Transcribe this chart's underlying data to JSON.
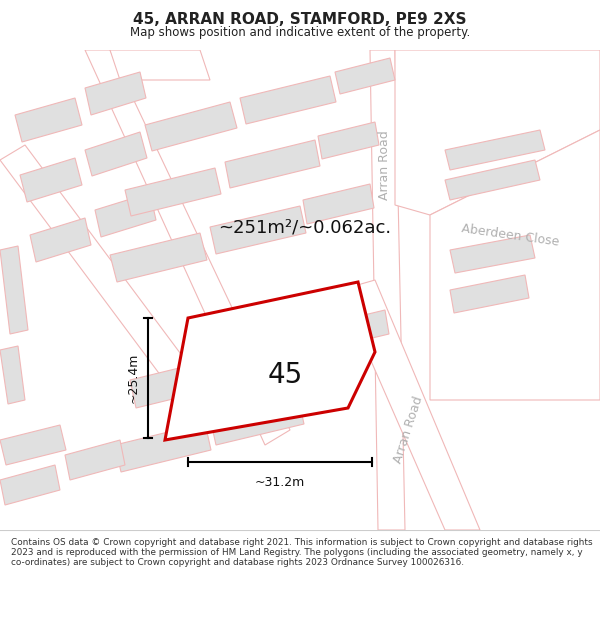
{
  "title": "45, ARRAN ROAD, STAMFORD, PE9 2XS",
  "subtitle": "Map shows position and indicative extent of the property.",
  "footer": "Contains OS data © Crown copyright and database right 2021. This information is subject to Crown copyright and database rights 2023 and is reproduced with the permission of HM Land Registry. The polygons (including the associated geometry, namely x, y co-ordinates) are subject to Crown copyright and database rights 2023 Ordnance Survey 100026316.",
  "bg_color": "#ffffff",
  "map_bg": "#f9f9f9",
  "plot_color": "#e0e0e0",
  "road_stroke": "#f0b8b8",
  "highlight_color": "#cc0000",
  "street_text_color": "#b0b0b0",
  "dim_text_color": "#111111",
  "area_text": "~251m²/~0.062ac.",
  "width_text": "~31.2m",
  "height_text": "~25.4m",
  "label_45": "45",
  "arran_road_upper": "Arran Road",
  "arran_road_lower": "Arran Road",
  "aberdeen_close_label": "Aberdeen Close"
}
